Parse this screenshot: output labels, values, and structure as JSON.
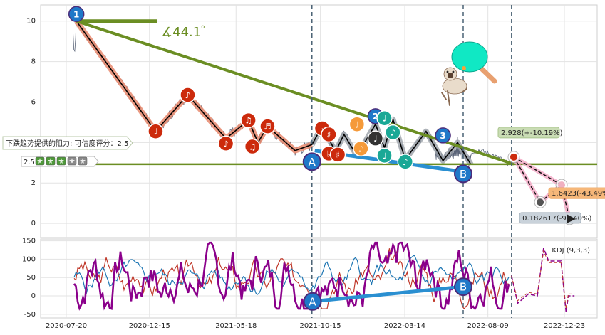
{
  "colors": {
    "price_line": "#5a6478",
    "wave_line": "#000000",
    "wave_halo": "#e8896e",
    "gray_halo": "#9aa0a8",
    "resistance_line": "#6b8e23",
    "support_segment": "#2a8fd1",
    "projection_pink": "#f4a6c4",
    "kdj_k": "#c0392b",
    "kdj_d": "#1f77b4",
    "kdj_j": "#8b008b",
    "dashed_marker": "#4a6275",
    "red_node": "#cc2a0c",
    "orange_node": "#f59a3a",
    "teal_node": "#1aa896",
    "blue_node": "#1f78c8",
    "dark_node": "#333333"
  },
  "chart_data": [
    {
      "type": "line",
      "panel": "price",
      "ylim": [
        -0.7,
        10.8
      ],
      "yticks": [
        0,
        2,
        4,
        6,
        8,
        10
      ],
      "wave_points": [
        {
          "date": "2020-08-07",
          "y": 10.0
        },
        {
          "date": "2020-12-26",
          "y": 4.55
        },
        {
          "date": "2021-02-21",
          "y": 6.35
        },
        {
          "date": "2021-04-30",
          "y": 4.2
        },
        {
          "date": "2021-06-09",
          "y": 5.1
        },
        {
          "date": "2021-06-26",
          "y": 4.0
        },
        {
          "date": "2021-07-13",
          "y": 4.8
        },
        {
          "date": "2021-08-31",
          "y": 3.6
        },
        {
          "date": "2021-09-30",
          "y": 3.9
        },
        {
          "date": "2021-10-18",
          "y": 4.8
        },
        {
          "date": "2021-11-11",
          "y": 3.55
        },
        {
          "date": "2021-11-26",
          "y": 4.4
        },
        {
          "date": "2021-12-19",
          "y": 3.35
        },
        {
          "date": "2022-01-21",
          "y": 4.9
        },
        {
          "date": "2022-02-06",
          "y": 3.75
        },
        {
          "date": "2022-02-21",
          "y": 5.15
        },
        {
          "date": "2022-03-15",
          "y": 3.15
        },
        {
          "date": "2022-04-21",
          "y": 4.55
        },
        {
          "date": "2022-05-21",
          "y": 3.1
        },
        {
          "date": "2022-06-16",
          "y": 4.0
        },
        {
          "date": "2022-07-10",
          "y": 2.9
        }
      ],
      "price_overlay": [
        {
          "date": "2022-05-09",
          "y": 3.2
        },
        {
          "date": "2022-06-25",
          "y": 3.3
        },
        {
          "date": "2022-07-24",
          "y": 3.65
        },
        {
          "date": "2022-08-29",
          "y": 3.25
        },
        {
          "date": "2022-09-14",
          "y": 2.95
        }
      ],
      "resistance_line": {
        "from": {
          "date": "2020-08-07",
          "y": 10.0
        },
        "to": {
          "date": "2022-09-24",
          "y": 2.93
        }
      },
      "horizontal_flag": {
        "from": {
          "date": "2020-08-07",
          "y": 10.0
        },
        "to": {
          "date": "2020-12-28",
          "y": 10.0
        }
      },
      "support_level": 2.928,
      "support_segment": {
        "from": {
          "date": "2021-10-05",
          "y": 3.6
        },
        "to": {
          "date": "2022-06-26",
          "y": 2.55
        }
      },
      "angle_label": "∡44.1゜",
      "projection": [
        {
          "date": "2022-09-24",
          "y": 3.28,
          "label": "2.928(+-10.19%)"
        },
        {
          "date": "2022-11-10",
          "y": 1.05,
          "label": ""
        },
        {
          "date": "2022-12-18",
          "y": 1.9,
          "label": "1.6423(-43.49%)"
        },
        {
          "date": "2023-01-01",
          "y": 0.22,
          "label": "0.182617(-94.40%)"
        }
      ],
      "nodes": [
        {
          "date": "2020-08-07",
          "y": 10.35,
          "kind": "blue",
          "glyph": "1"
        },
        {
          "date": "2020-12-26",
          "y": 4.55,
          "kind": "red",
          "glyph": "♩"
        },
        {
          "date": "2021-02-21",
          "y": 6.35,
          "kind": "red",
          "glyph": "♪"
        },
        {
          "date": "2021-04-30",
          "y": 3.95,
          "kind": "red",
          "glyph": "♪"
        },
        {
          "date": "2021-06-09",
          "y": 5.1,
          "kind": "red",
          "glyph": "♫"
        },
        {
          "date": "2021-06-16",
          "y": 3.8,
          "kind": "red",
          "glyph": "♫"
        },
        {
          "date": "2021-07-13",
          "y": 4.8,
          "kind": "red",
          "glyph": "♬"
        },
        {
          "date": "2021-10-18",
          "y": 4.7,
          "kind": "red",
          "glyph": "♭"
        },
        {
          "date": "2021-10-30",
          "y": 4.4,
          "kind": "red",
          "glyph": "♯"
        },
        {
          "date": "2021-10-30",
          "y": 3.45,
          "kind": "red",
          "glyph": "♭"
        },
        {
          "date": "2021-11-15",
          "y": 3.4,
          "kind": "red",
          "glyph": "♯"
        },
        {
          "date": "2021-12-19",
          "y": 4.9,
          "kind": "orange",
          "glyph": "♩"
        },
        {
          "date": "2021-12-26",
          "y": 3.7,
          "kind": "orange",
          "glyph": "♪"
        },
        {
          "date": "2022-01-21",
          "y": 5.3,
          "kind": "blue",
          "glyph": "2"
        },
        {
          "date": "2022-01-21",
          "y": 4.2,
          "kind": "dark",
          "glyph": "♩"
        },
        {
          "date": "2022-02-06",
          "y": 5.2,
          "kind": "teal",
          "glyph": "♩"
        },
        {
          "date": "2022-02-06",
          "y": 3.35,
          "kind": "teal",
          "glyph": "♩"
        },
        {
          "date": "2022-02-21",
          "y": 4.5,
          "kind": "teal",
          "glyph": "♪"
        },
        {
          "date": "2022-03-15",
          "y": 3.05,
          "kind": "teal",
          "glyph": "♪"
        },
        {
          "date": "2022-05-21",
          "y": 4.35,
          "kind": "blue",
          "glyph": "3"
        }
      ],
      "wave_labels": [
        {
          "date": "2021-09-30",
          "y": 3.05,
          "text": "A"
        },
        {
          "date": "2022-06-26",
          "y": 2.45,
          "text": "B"
        }
      ],
      "vlines": [
        "2021-09-30",
        "2022-06-26",
        "2022-09-20"
      ],
      "resistance_callout": "下跌趋势提供的阻力: 可信度评分：2.5",
      "rating_score": "2.5",
      "rating_stars_filled": 3,
      "rating_stars_total": 5
    },
    {
      "type": "line",
      "panel": "kdj",
      "legend": "KDJ (9,3,3)",
      "ylim": [
        -60,
        155
      ],
      "yticks": [
        -50,
        0,
        50,
        100,
        150
      ],
      "wave_segment": {
        "from": {
          "date": "2021-10-01",
          "y": -15
        },
        "to": {
          "date": "2022-06-26",
          "y": 25
        }
      },
      "wave_labels": [
        {
          "date": "2021-10-01",
          "y": -15,
          "text": "A"
        },
        {
          "date": "2022-06-26",
          "y": 25,
          "text": "B"
        }
      ]
    }
  ],
  "x_axis": {
    "ticks": [
      "2020-07-20",
      "2020-12-15",
      "2021-05-18",
      "2021-10-15",
      "2022-03-14",
      "2022-08-09",
      "2022-12-23"
    ]
  },
  "icons": [
    "ping-pong-paddle-icon",
    "pug-dog-icon",
    "star-rating-icon"
  ]
}
